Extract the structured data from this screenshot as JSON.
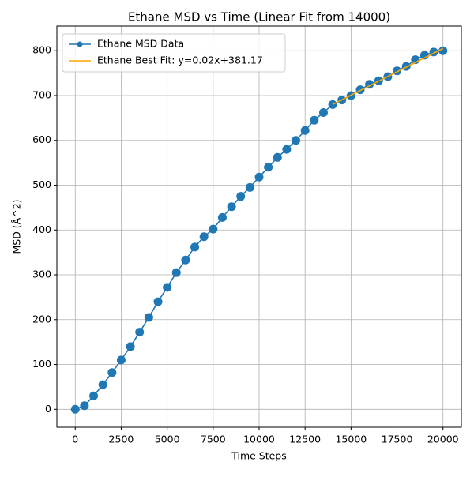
{
  "chart_data": {
    "type": "line",
    "title": "Ethane MSD vs Time (Linear Fit from 14000)",
    "xlabel": "Time Steps",
    "ylabel": "MSD (Å^2)",
    "xlim": [
      -1000,
      21000
    ],
    "ylim": [
      -40,
      855
    ],
    "xticks": [
      0,
      2500,
      5000,
      7500,
      10000,
      12500,
      15000,
      17500,
      20000
    ],
    "yticks": [
      0,
      100,
      200,
      300,
      400,
      500,
      600,
      700,
      800
    ],
    "grid": true,
    "legend": "upper left",
    "series": [
      {
        "name": "Ethane MSD Data",
        "color": "#1f77b4",
        "marker": "o",
        "x": [
          0,
          500,
          1000,
          1500,
          2000,
          2500,
          3000,
          3500,
          4000,
          4500,
          5000,
          5500,
          6000,
          6500,
          7000,
          7500,
          8000,
          8500,
          9000,
          9500,
          10000,
          10500,
          11000,
          11500,
          12000,
          12500,
          13000,
          13500,
          14000,
          14500,
          15000,
          15500,
          16000,
          16500,
          17000,
          17500,
          18000,
          18500,
          19000,
          19500,
          20000
        ],
        "values": [
          0,
          8,
          30,
          55,
          82,
          110,
          140,
          172,
          205,
          240,
          272,
          305,
          333,
          362,
          385,
          402,
          428,
          452,
          475,
          495,
          518,
          540,
          562,
          580,
          600,
          622,
          645,
          662,
          680,
          690,
          700,
          713,
          725,
          733,
          742,
          755,
          765,
          780,
          790,
          797,
          800
        ]
      },
      {
        "name": "Ethane Best Fit: y=0.02x+381.17",
        "color": "#ffa500",
        "x": [
          14000,
          20000
        ],
        "values": [
          680,
          805
        ]
      }
    ]
  }
}
